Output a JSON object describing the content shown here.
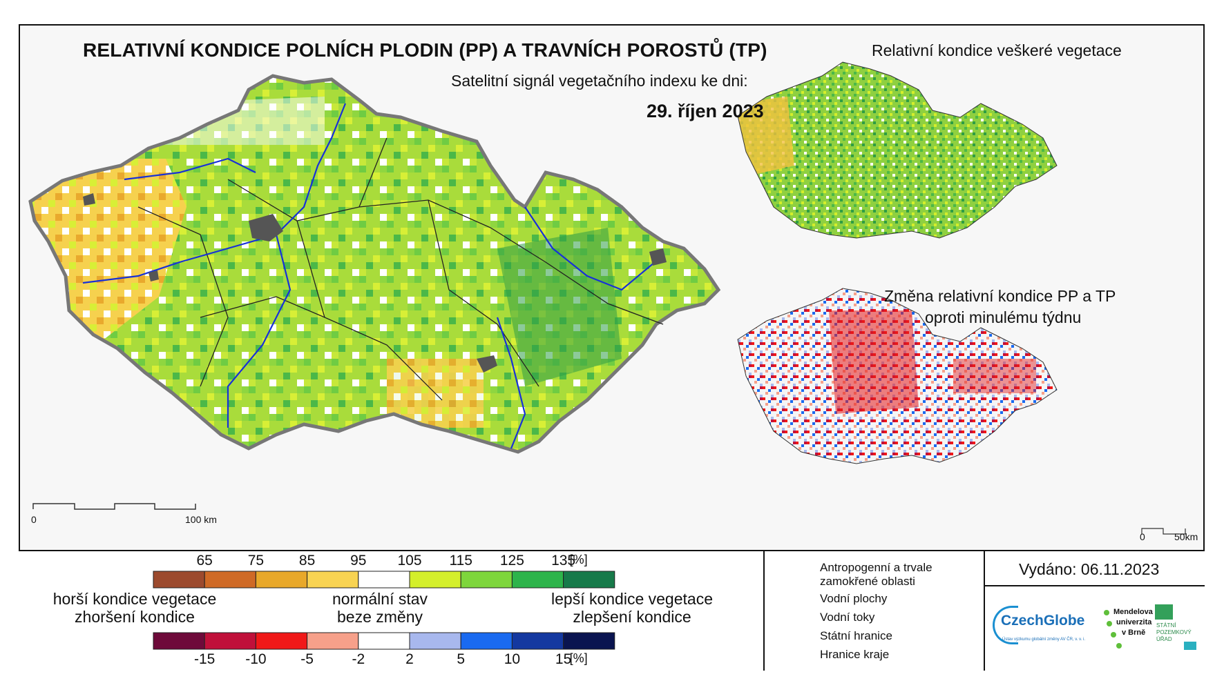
{
  "main_map": {
    "title": "RELATIVNÍ KONDICE POLNÍCH PLODIN (PP) A TRAVNÍCH POROSTŮ (TP)",
    "subtitle": "Satelitní signál vegetačního indexu ke dni:",
    "date": "29. říjen 2023",
    "scale": {
      "start": "0",
      "end": "100 km"
    }
  },
  "inset_vegetation": {
    "title": "Relativní kondice veškeré vegetace"
  },
  "inset_change": {
    "title_line1": "Změna relativní kondice PP a TP",
    "title_line2": "oproti minulému týdnu",
    "scale": {
      "start": "0",
      "end": "50km"
    }
  },
  "legend_condition": {
    "ticks": [
      "65",
      "75",
      "85",
      "95",
      "105",
      "115",
      "125",
      "135",
      "[%]"
    ],
    "colors": [
      "#9c4a2e",
      "#cf6a26",
      "#e8a82a",
      "#f8d352",
      "#ffffff",
      "#d4ef2b",
      "#7ed63c",
      "#2eb44b",
      "#177a4a"
    ]
  },
  "legend_change": {
    "ticks": [
      "-15",
      "-10",
      "-5",
      "-2",
      "2",
      "5",
      "10",
      "15",
      "[%]"
    ],
    "colors": [
      "#6e0a3a",
      "#c0103a",
      "#f01818",
      "#f6a08a",
      "#ffffff",
      "#a8b8ee",
      "#1a6af0",
      "#1438a0",
      "#0a1450"
    ]
  },
  "legend_labels": {
    "worse_line1": "horší kondice vegetace",
    "worse_line2": "zhoršení kondice",
    "normal_line1": "normální stav",
    "normal_line2": "beze změny",
    "better_line1": "lepší kondice vegetace",
    "better_line2": "zlepšení kondice"
  },
  "map_key": {
    "urban_line1": "Antropogenní a trvale",
    "urban_line2": "zamokřené oblasti",
    "water_bodies": "Vodní plochy",
    "rivers": "Vodní toky",
    "state_border": "Státní hranice",
    "region_border": "Hranice kraje"
  },
  "issued": "Vydáno: 06.11.2023",
  "logos": {
    "czechglobe": "CzechGlobe",
    "czechglobe_sub": "Ústav výzkumu globální změny AV ČR, v. v. i.",
    "mendelu_line1": "Mendelova",
    "mendelu_line2": "univerzita",
    "mendelu_line3": "v Brně",
    "spu_line1": "STÁTNÍ",
    "spu_line2": "POZEMKOVÝ",
    "spu_line3": "ÚŘAD"
  }
}
